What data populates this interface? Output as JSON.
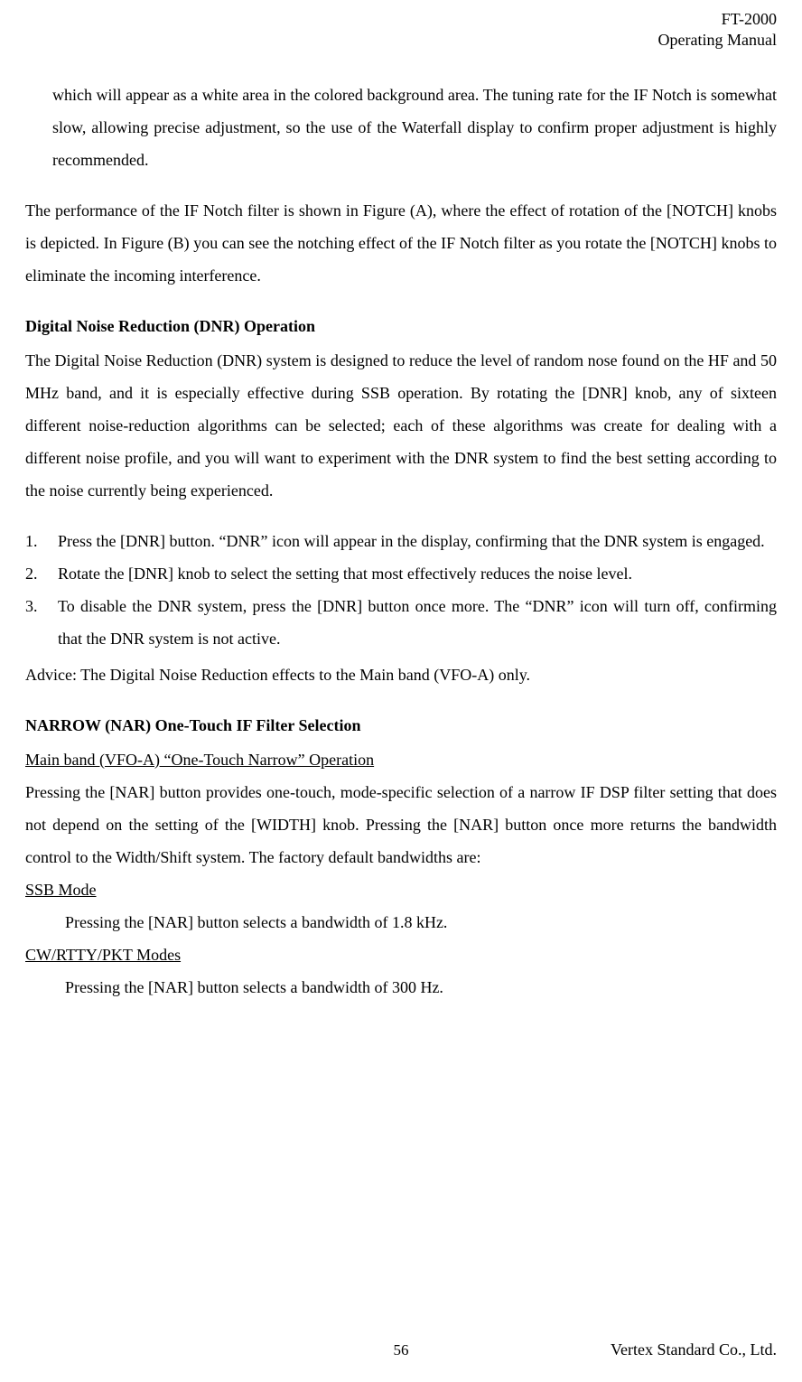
{
  "header": {
    "model": "FT-2000",
    "subtitle": "Operating Manual"
  },
  "para_intro": "which will appear as a white area in the colored background area. The tuning rate for the IF Notch is somewhat slow, allowing precise adjustment, so the use of the Waterfall display to confirm proper adjustment is highly recommended.",
  "para_performance": "The performance of the IF Notch filter is shown in Figure (A), where the effect of rotation of the [NOTCH] knobs is depicted. In Figure (B) you can see the notching effect of the IF Notch filter as you rotate the [NOTCH] knobs to eliminate the incoming interference.",
  "dnr": {
    "heading": "Digital Noise Reduction (DNR) Operation",
    "para": "The Digital Noise Reduction (DNR) system is designed to reduce the level of random nose found on the HF and 50 MHz band, and it is especially effective during SSB operation. By rotating the [DNR] knob, any of sixteen different noise-reduction algorithms can be selected; each of these algorithms was create for dealing with a different noise profile, and you will want to experiment with the DNR system to find the best setting according to the noise currently being experienced.",
    "steps": [
      "Press the [DNR] button. “DNR” icon will appear in the display, confirming that the DNR system is engaged.",
      "Rotate the [DNR] knob to select the setting that most effectively reduces the noise level.",
      "To disable the DNR system, press the [DNR] button once more. The “DNR” icon will turn off, confirming that the DNR system is not active."
    ],
    "advice": "Advice: The Digital Noise Reduction effects to the Main band (VFO-A) only."
  },
  "nar": {
    "heading": "NARROW (NAR) One-Touch IF Filter Selection",
    "subheading": "Main band (VFO-A) “One-Touch Narrow” Operation",
    "para": "Pressing the [NAR] button provides one-touch, mode-specific selection of a narrow IF DSP filter setting that does not depend on the setting of the [WIDTH] knob. Pressing the [NAR] button once more returns the bandwidth control to the Width/Shift system. The factory default bandwidths are:",
    "ssb_label": "SSB Mode",
    "ssb_text": "Pressing the [NAR] button selects a bandwidth of 1.8 kHz.",
    "cw_label": "CW/RTTY/PKT Modes",
    "cw_text": "Pressing the [NAR] button selects a bandwidth of 300 Hz."
  },
  "footer": {
    "page": "56",
    "company": "Vertex Standard Co., Ltd."
  }
}
